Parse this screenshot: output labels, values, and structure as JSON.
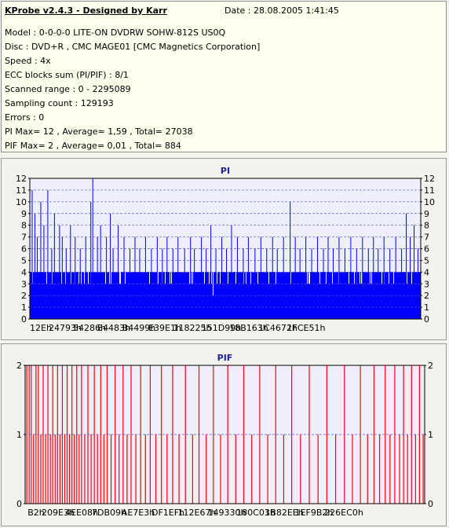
{
  "header": {
    "title": "KProbe v2.4.3 - Designed by Karr",
    "date": "Date : 28.08.2005 1:41:45"
  },
  "info_lines": [
    "Model : 0-0-0-0 LITE-ON DVDRW SOHW-812S  US0Q",
    "Disc : DVD+R , CMC MAGE01 [CMC Magnetics Corporation]",
    "Speed : 4x",
    "ECC blocks sum (PI/PIF) : 8/1",
    "Scanned range : 0 - 2295089",
    "Sampling count : 129193",
    "Errors : 0",
    "PI Max= 12 , Average= 1,59 , Total= 27038",
    "PIF Max= 2 , Average= 0,01 , Total= 884"
  ],
  "colors": {
    "pi": "#0000ff",
    "pif": "#ff0000",
    "plot_bg": "#eeeefc",
    "grid": "#5a5ab4"
  },
  "chart_data": [
    {
      "type": "bar",
      "title": "PI",
      "ylim": [
        0,
        12
      ],
      "y_ticks": [
        0,
        1,
        2,
        3,
        4,
        5,
        6,
        7,
        8,
        9,
        10,
        11,
        12
      ],
      "x_tick_labels": [
        "12Eh",
        "24793h",
        "54286h",
        "84483h",
        "B4499h",
        "E39E1h",
        "118225h",
        "151D99h",
        "18B163h",
        "1C4672h",
        "1FCE51h"
      ],
      "grid": true,
      "baseline_band": 4,
      "spikes": [
        {
          "x": 0.005,
          "v": 11
        },
        {
          "x": 0.012,
          "v": 9
        },
        {
          "x": 0.018,
          "v": 7
        },
        {
          "x": 0.027,
          "v": 10
        },
        {
          "x": 0.035,
          "v": 8
        },
        {
          "x": 0.045,
          "v": 11
        },
        {
          "x": 0.055,
          "v": 6
        },
        {
          "x": 0.062,
          "v": 9
        },
        {
          "x": 0.075,
          "v": 8
        },
        {
          "x": 0.082,
          "v": 7
        },
        {
          "x": 0.092,
          "v": 6
        },
        {
          "x": 0.103,
          "v": 8
        },
        {
          "x": 0.115,
          "v": 7
        },
        {
          "x": 0.128,
          "v": 6
        },
        {
          "x": 0.142,
          "v": 7
        },
        {
          "x": 0.155,
          "v": 10
        },
        {
          "x": 0.16,
          "v": 12
        },
        {
          "x": 0.172,
          "v": 7
        },
        {
          "x": 0.18,
          "v": 8
        },
        {
          "x": 0.195,
          "v": 7
        },
        {
          "x": 0.205,
          "v": 9
        },
        {
          "x": 0.212,
          "v": 6
        },
        {
          "x": 0.225,
          "v": 8
        },
        {
          "x": 0.24,
          "v": 7
        },
        {
          "x": 0.255,
          "v": 6
        },
        {
          "x": 0.268,
          "v": 7
        },
        {
          "x": 0.28,
          "v": 6
        },
        {
          "x": 0.295,
          "v": 7
        },
        {
          "x": 0.31,
          "v": 6
        },
        {
          "x": 0.325,
          "v": 7
        },
        {
          "x": 0.338,
          "v": 6
        },
        {
          "x": 0.35,
          "v": 7
        },
        {
          "x": 0.365,
          "v": 6
        },
        {
          "x": 0.378,
          "v": 7
        },
        {
          "x": 0.395,
          "v": 6
        },
        {
          "x": 0.41,
          "v": 7
        },
        {
          "x": 0.42,
          "v": 6
        },
        {
          "x": 0.438,
          "v": 7
        },
        {
          "x": 0.45,
          "v": 6
        },
        {
          "x": 0.462,
          "v": 8
        },
        {
          "x": 0.475,
          "v": 6
        },
        {
          "x": 0.49,
          "v": 7
        },
        {
          "x": 0.502,
          "v": 6
        },
        {
          "x": 0.515,
          "v": 8
        },
        {
          "x": 0.53,
          "v": 7
        },
        {
          "x": 0.545,
          "v": 6
        },
        {
          "x": 0.558,
          "v": 7
        },
        {
          "x": 0.575,
          "v": 6
        },
        {
          "x": 0.59,
          "v": 7
        },
        {
          "x": 0.605,
          "v": 6
        },
        {
          "x": 0.62,
          "v": 7
        },
        {
          "x": 0.632,
          "v": 6
        },
        {
          "x": 0.648,
          "v": 7
        },
        {
          "x": 0.665,
          "v": 10
        },
        {
          "x": 0.678,
          "v": 7
        },
        {
          "x": 0.69,
          "v": 6
        },
        {
          "x": 0.705,
          "v": 7
        },
        {
          "x": 0.72,
          "v": 6
        },
        {
          "x": 0.735,
          "v": 7
        },
        {
          "x": 0.75,
          "v": 6
        },
        {
          "x": 0.762,
          "v": 7
        },
        {
          "x": 0.775,
          "v": 6
        },
        {
          "x": 0.79,
          "v": 7
        },
        {
          "x": 0.805,
          "v": 6
        },
        {
          "x": 0.82,
          "v": 7
        },
        {
          "x": 0.835,
          "v": 6
        },
        {
          "x": 0.85,
          "v": 7
        },
        {
          "x": 0.865,
          "v": 6
        },
        {
          "x": 0.878,
          "v": 7
        },
        {
          "x": 0.89,
          "v": 6
        },
        {
          "x": 0.905,
          "v": 7
        },
        {
          "x": 0.92,
          "v": 6
        },
        {
          "x": 0.935,
          "v": 7
        },
        {
          "x": 0.95,
          "v": 6
        },
        {
          "x": 0.962,
          "v": 9
        },
        {
          "x": 0.972,
          "v": 7
        },
        {
          "x": 0.982,
          "v": 8
        },
        {
          "x": 0.992,
          "v": 6
        }
      ]
    },
    {
      "type": "bar",
      "title": "PIF",
      "ylim": [
        0,
        2
      ],
      "y_ticks": [
        0,
        1,
        2
      ],
      "x_tick_labels": [
        "B2h",
        "209E3h",
        "4EE08h",
        "7DB09h",
        "AE7E3h",
        "DF1EFh",
        "112E67h",
        "149330h",
        "180C03h",
        "1B82EEh",
        "1EF9B2h",
        "226EC0h"
      ],
      "grid": true,
      "bars": [
        {
          "x": 0.003,
          "v": 2
        },
        {
          "x": 0.009,
          "v": 2
        },
        {
          "x": 0.014,
          "v": 2
        },
        {
          "x": 0.02,
          "v": 1
        },
        {
          "x": 0.026,
          "v": 2
        },
        {
          "x": 0.032,
          "v": 2
        },
        {
          "x": 0.038,
          "v": 1
        },
        {
          "x": 0.044,
          "v": 2
        },
        {
          "x": 0.05,
          "v": 1
        },
        {
          "x": 0.056,
          "v": 2
        },
        {
          "x": 0.062,
          "v": 1
        },
        {
          "x": 0.068,
          "v": 2
        },
        {
          "x": 0.074,
          "v": 1
        },
        {
          "x": 0.08,
          "v": 2
        },
        {
          "x": 0.086,
          "v": 1
        },
        {
          "x": 0.092,
          "v": 2
        },
        {
          "x": 0.098,
          "v": 1
        },
        {
          "x": 0.104,
          "v": 2
        },
        {
          "x": 0.11,
          "v": 1
        },
        {
          "x": 0.116,
          "v": 2
        },
        {
          "x": 0.122,
          "v": 1
        },
        {
          "x": 0.128,
          "v": 2
        },
        {
          "x": 0.134,
          "v": 1
        },
        {
          "x": 0.14,
          "v": 2
        },
        {
          "x": 0.148,
          "v": 1
        },
        {
          "x": 0.156,
          "v": 2
        },
        {
          "x": 0.164,
          "v": 1
        },
        {
          "x": 0.172,
          "v": 2
        },
        {
          "x": 0.18,
          "v": 1
        },
        {
          "x": 0.188,
          "v": 2
        },
        {
          "x": 0.196,
          "v": 1
        },
        {
          "x": 0.204,
          "v": 2
        },
        {
          "x": 0.214,
          "v": 1
        },
        {
          "x": 0.224,
          "v": 2
        },
        {
          "x": 0.234,
          "v": 1
        },
        {
          "x": 0.244,
          "v": 2
        },
        {
          "x": 0.254,
          "v": 1
        },
        {
          "x": 0.264,
          "v": 2
        },
        {
          "x": 0.276,
          "v": 1
        },
        {
          "x": 0.288,
          "v": 2
        },
        {
          "x": 0.3,
          "v": 1
        },
        {
          "x": 0.312,
          "v": 2
        },
        {
          "x": 0.326,
          "v": 1
        },
        {
          "x": 0.34,
          "v": 2
        },
        {
          "x": 0.354,
          "v": 1
        },
        {
          "x": 0.368,
          "v": 2
        },
        {
          "x": 0.384,
          "v": 1
        },
        {
          "x": 0.4,
          "v": 2
        },
        {
          "x": 0.418,
          "v": 1
        },
        {
          "x": 0.434,
          "v": 2
        },
        {
          "x": 0.452,
          "v": 1
        },
        {
          "x": 0.47,
          "v": 2
        },
        {
          "x": 0.488,
          "v": 1
        },
        {
          "x": 0.506,
          "v": 2
        },
        {
          "x": 0.526,
          "v": 1
        },
        {
          "x": 0.546,
          "v": 2
        },
        {
          "x": 0.566,
          "v": 1
        },
        {
          "x": 0.586,
          "v": 2
        },
        {
          "x": 0.606,
          "v": 1
        },
        {
          "x": 0.626,
          "v": 2
        },
        {
          "x": 0.646,
          "v": 1
        },
        {
          "x": 0.666,
          "v": 2
        },
        {
          "x": 0.688,
          "v": 1
        },
        {
          "x": 0.71,
          "v": 2
        },
        {
          "x": 0.732,
          "v": 1
        },
        {
          "x": 0.754,
          "v": 2
        },
        {
          "x": 0.776,
          "v": 1
        },
        {
          "x": 0.798,
          "v": 2
        },
        {
          "x": 0.818,
          "v": 1
        },
        {
          "x": 0.838,
          "v": 2
        },
        {
          "x": 0.856,
          "v": 1
        },
        {
          "x": 0.872,
          "v": 2
        },
        {
          "x": 0.886,
          "v": 1
        },
        {
          "x": 0.9,
          "v": 2
        },
        {
          "x": 0.912,
          "v": 1
        },
        {
          "x": 0.924,
          "v": 2
        },
        {
          "x": 0.936,
          "v": 1
        },
        {
          "x": 0.946,
          "v": 2
        },
        {
          "x": 0.956,
          "v": 1
        },
        {
          "x": 0.966,
          "v": 2
        },
        {
          "x": 0.976,
          "v": 1
        },
        {
          "x": 0.986,
          "v": 2
        },
        {
          "x": 0.995,
          "v": 1
        }
      ]
    }
  ]
}
